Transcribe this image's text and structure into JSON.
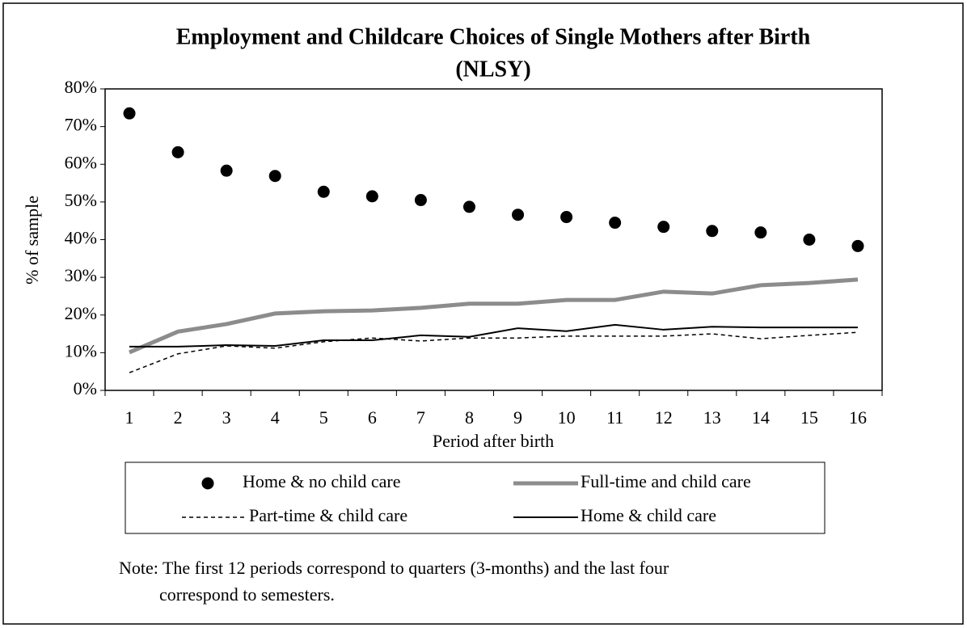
{
  "chart_data": {
    "type": "line",
    "title": [
      "Employment and Childcare Choices of Single Mothers after Birth",
      "(NLSY)"
    ],
    "x_label": "Period after birth",
    "y_label": "% of sample",
    "categories": [
      "1",
      "2",
      "3",
      "4",
      "5",
      "6",
      "7",
      "8",
      "9",
      "10",
      "11",
      "12",
      "13",
      "14",
      "15",
      "16"
    ],
    "ylim": [
      0,
      80
    ],
    "yticks": [
      {
        "value": 0,
        "label": "0%"
      },
      {
        "value": 10,
        "label": "10%"
      },
      {
        "value": 20,
        "label": "20%"
      },
      {
        "value": 30,
        "label": "30%"
      },
      {
        "value": 40,
        "label": "40%"
      },
      {
        "value": 50,
        "label": "50%"
      },
      {
        "value": 60,
        "label": "60%"
      },
      {
        "value": 70,
        "label": "70%"
      },
      {
        "value": 80,
        "label": "80%"
      }
    ],
    "grid": false,
    "legend": "bottom",
    "series": [
      {
        "name": "Home & no child care",
        "color": "#000000",
        "mode": "markers",
        "values": [
          73.5,
          63.2,
          58.3,
          56.9,
          52.7,
          51.5,
          50.5,
          48.7,
          46.6,
          46.0,
          44.5,
          43.4,
          42.3,
          41.9,
          40.0,
          38.3
        ]
      },
      {
        "name": "Full-time and child care",
        "color": "#8c8c8c",
        "mode": "lines",
        "width": 5,
        "dashed": false,
        "values": [
          10.1,
          15.6,
          17.6,
          20.4,
          21.0,
          21.2,
          21.9,
          23.0,
          23.0,
          24.0,
          24.0,
          26.2,
          25.7,
          27.9,
          28.5,
          29.4
        ]
      },
      {
        "name": "Part-time & child care",
        "color": "#000000",
        "mode": "lines",
        "width": 1.5,
        "dashed": true,
        "values": [
          4.7,
          9.7,
          11.8,
          11.2,
          12.9,
          13.9,
          13.1,
          13.9,
          13.9,
          14.4,
          14.4,
          14.4,
          15.0,
          13.7,
          14.6,
          15.4
        ]
      },
      {
        "name": "Home & child care",
        "color": "#000000",
        "mode": "lines",
        "width": 2,
        "dashed": false,
        "values": [
          11.6,
          11.6,
          12.0,
          11.8,
          13.3,
          13.3,
          14.6,
          14.2,
          16.5,
          15.7,
          17.4,
          16.1,
          16.9,
          16.7,
          16.7,
          16.7
        ]
      }
    ],
    "note": [
      "Note: The first 12 periods correspond to quarters (3-months) and the last four",
      "correspond to semesters."
    ]
  }
}
